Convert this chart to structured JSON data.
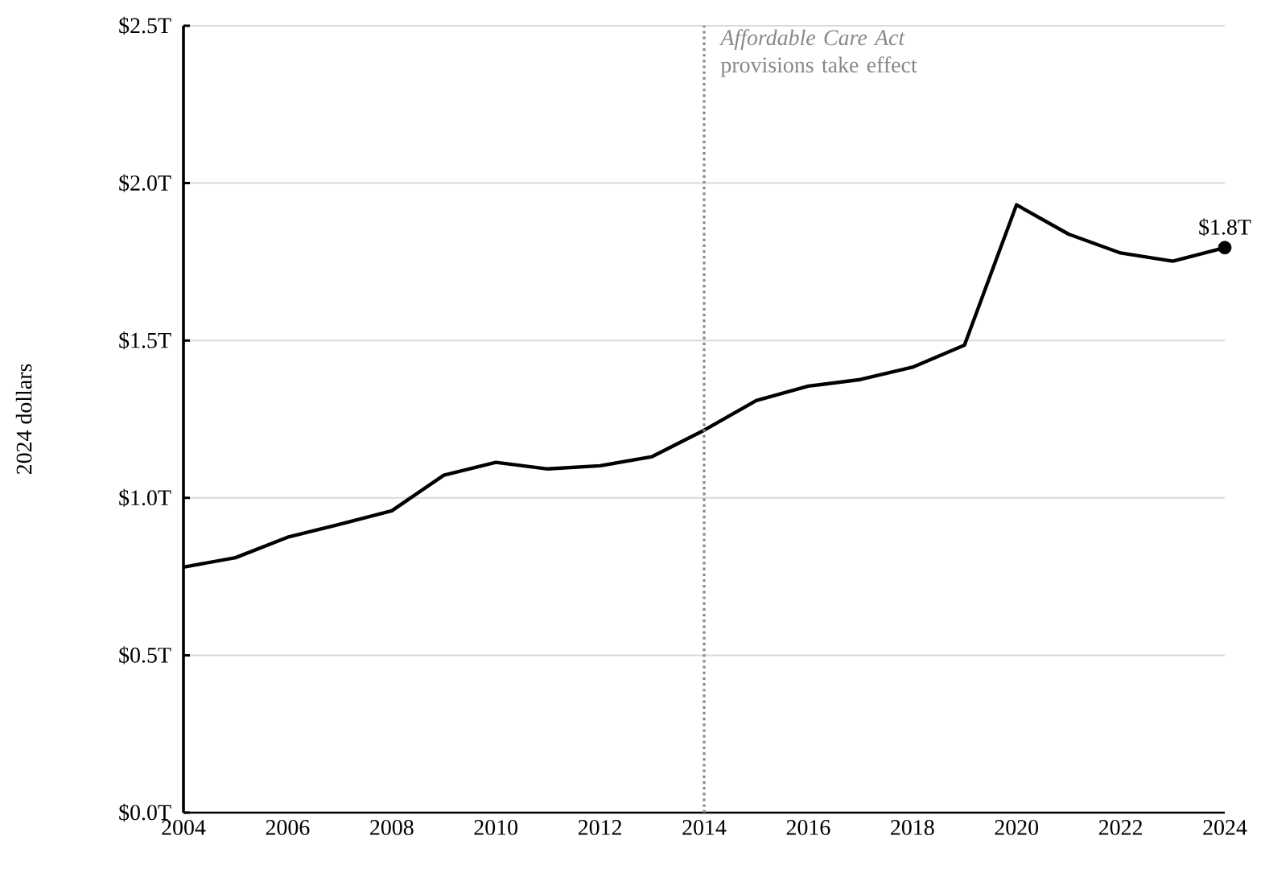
{
  "chart_data": {
    "type": "line",
    "ylabel": "2024 dollars",
    "xlim": [
      2004,
      2024
    ],
    "ylim": [
      0,
      2.5
    ],
    "xticks": [
      2004,
      2006,
      2008,
      2010,
      2012,
      2014,
      2016,
      2018,
      2020,
      2022,
      2024
    ],
    "yticks": [
      {
        "value": 0,
        "label": "$0.0T"
      },
      {
        "value": 0.5,
        "label": "$0.5T"
      },
      {
        "value": 1.0,
        "label": "$1.0T"
      },
      {
        "value": 1.5,
        "label": "$1.5T"
      },
      {
        "value": 2.0,
        "label": "$2.0T"
      },
      {
        "value": 2.5,
        "label": "$2.5T"
      }
    ],
    "grid": "y",
    "line_style": "solid",
    "series": [
      {
        "color": "#000000",
        "x": [
          2004,
          2005,
          2006,
          2007,
          2008,
          2009,
          2010,
          2011,
          2012,
          2013,
          2014,
          2015,
          2016,
          2017,
          2018,
          2019,
          2020,
          2021,
          2022,
          2023,
          2024
        ],
        "values": [
          0.78,
          0.81,
          0.875,
          0.916,
          0.959,
          1.072,
          1.113,
          1.092,
          1.102,
          1.131,
          1.215,
          1.309,
          1.355,
          1.376,
          1.415,
          1.485,
          1.931,
          1.838,
          1.778,
          1.752,
          1.795
        ]
      },
      {
        "type": "scatter",
        "color": "#000000",
        "marker": "circle",
        "x": [
          2024
        ],
        "values": [
          1.795
        ],
        "value_labels": [
          "$1.8T"
        ]
      }
    ],
    "ref_lines": [
      {
        "axis": "x",
        "value": 2014,
        "label": "*Affordable Care Act* provisions take effect",
        "color": "#888888",
        "line_style": "dotted"
      }
    ]
  }
}
